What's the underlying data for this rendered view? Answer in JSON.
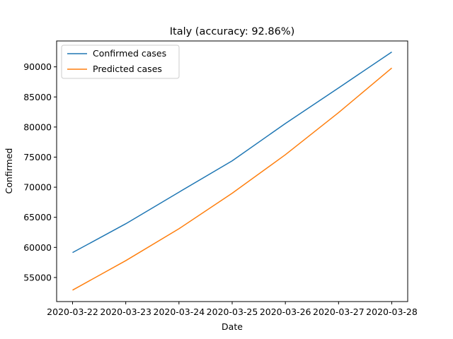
{
  "chart_data": {
    "type": "line",
    "title": "Italy (accuracy: 92.86%)",
    "xlabel": "Date",
    "ylabel": "Confirmed",
    "categories": [
      "2020-03-22",
      "2020-03-23",
      "2020-03-24",
      "2020-03-25",
      "2020-03-26",
      "2020-03-27",
      "2020-03-28"
    ],
    "series": [
      {
        "name": "Confirmed cases",
        "color": "#1f77b4",
        "values": [
          59138,
          63927,
          69176,
          74386,
          80589,
          86498,
          92472
        ]
      },
      {
        "name": "Predicted cases",
        "color": "#ff7f0e",
        "values": [
          52900,
          57800,
          63100,
          69000,
          75400,
          82400,
          89800
        ]
      }
    ],
    "yticks": [
      55000,
      60000,
      65000,
      70000,
      75000,
      80000,
      85000,
      90000
    ],
    "ylim": [
      51000,
      94300
    ],
    "grid": false,
    "legend_position": "top-left"
  }
}
